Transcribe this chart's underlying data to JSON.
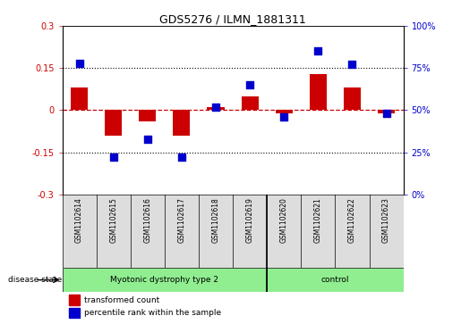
{
  "title": "GDS5276 / ILMN_1881311",
  "samples": [
    "GSM1102614",
    "GSM1102615",
    "GSM1102616",
    "GSM1102617",
    "GSM1102618",
    "GSM1102619",
    "GSM1102620",
    "GSM1102621",
    "GSM1102622",
    "GSM1102623"
  ],
  "red_values": [
    0.08,
    -0.09,
    -0.04,
    -0.09,
    0.01,
    0.05,
    -0.01,
    0.13,
    0.08,
    -0.01
  ],
  "blue_values": [
    78,
    22,
    33,
    22,
    52,
    65,
    46,
    85,
    77,
    48
  ],
  "groups": [
    {
      "label": "Myotonic dystrophy type 2",
      "start": 0,
      "end": 6,
      "color": "#90EE90"
    },
    {
      "label": "control",
      "start": 6,
      "end": 10,
      "color": "#90EE90"
    }
  ],
  "ylim_left": [
    -0.3,
    0.3
  ],
  "ylim_right": [
    0,
    100
  ],
  "yticks_left": [
    -0.3,
    -0.15,
    0.0,
    0.15,
    0.3
  ],
  "yticks_right": [
    0,
    25,
    50,
    75,
    100
  ],
  "ytick_labels_left": [
    "-0.3",
    "-0.15",
    "0",
    "0.15",
    "0.3"
  ],
  "ytick_labels_right": [
    "0%",
    "25%",
    "50%",
    "75%",
    "100%"
  ],
  "hlines": [
    0.15,
    -0.15
  ],
  "bar_color": "#CC0000",
  "dot_color": "#0000CC",
  "legend_red_label": "transformed count",
  "legend_blue_label": "percentile rank within the sample",
  "disease_state_label": "disease state",
  "tick_color_left": "#CC0000",
  "tick_color_right": "#0000CC",
  "bar_width": 0.5,
  "dot_size": 28,
  "sample_box_color": "#DDDDDD",
  "border_color": "#000000"
}
